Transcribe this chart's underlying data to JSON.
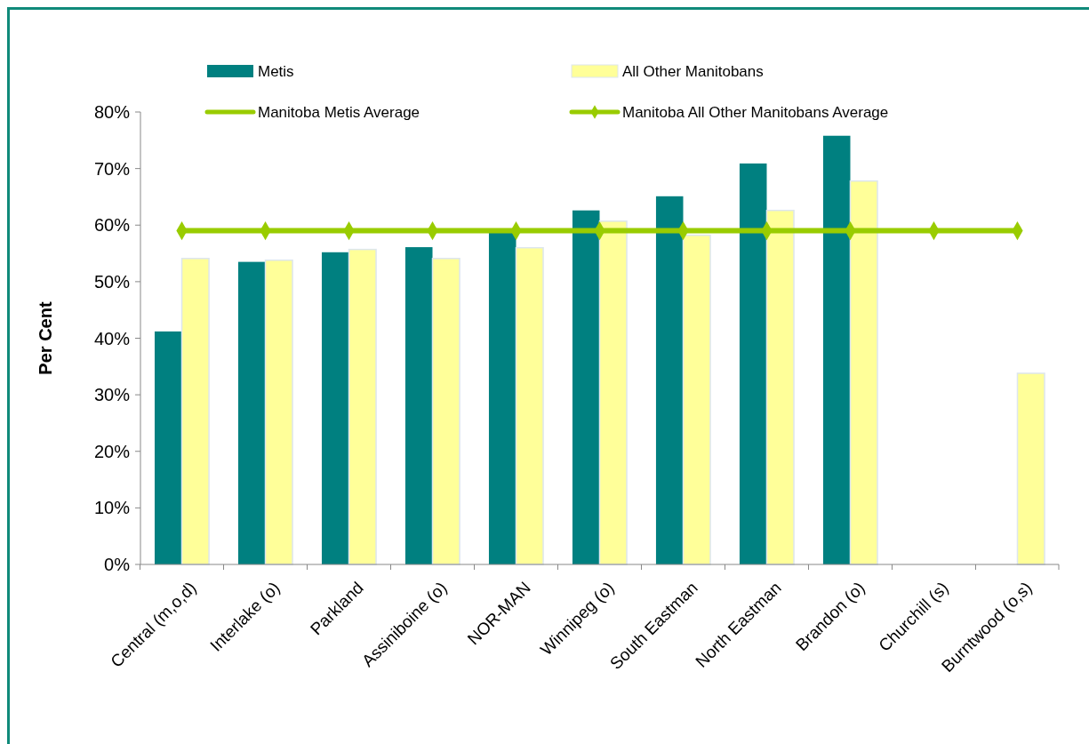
{
  "chart_data": {
    "type": "bar",
    "ylabel": "Per Cent",
    "categories": [
      "Central (m,o,d)",
      "Interlake (o)",
      "Parkland",
      "Assiniboine (o)",
      "NOR-MAN",
      "Winnipeg (o)",
      "South Eastman",
      "North Eastman",
      "Brandon (o)",
      "Churchill (s)",
      "Burntwood (o,s)"
    ],
    "series": [
      {
        "name": "Metis",
        "color": "#008080",
        "values": [
          41.2,
          53.5,
          55.2,
          56.1,
          58.8,
          62.6,
          65.1,
          70.9,
          75.8,
          null,
          null
        ]
      },
      {
        "name": "All Other Manitobans",
        "color": "#ffff99",
        "values": [
          54.1,
          53.8,
          55.7,
          54.1,
          56.0,
          60.7,
          58.2,
          62.6,
          67.8,
          null,
          33.8
        ]
      },
      {
        "name": "Manitoba Metis Average",
        "type": "line",
        "color": "#99cc00",
        "marker": "none",
        "values": [
          null,
          null,
          null,
          null,
          null,
          null,
          null,
          null,
          null,
          null,
          null
        ]
      },
      {
        "name": "Manitoba All Other Manitobans Average",
        "type": "line",
        "color": "#99cc00",
        "marker": "diamond",
        "values": [
          59,
          59,
          59,
          59,
          59,
          59,
          59,
          59,
          59,
          59,
          59
        ]
      }
    ],
    "ylim": [
      0,
      80
    ],
    "yticks": [
      {
        "value": 0,
        "label": "0%"
      },
      {
        "value": 10,
        "label": "10%"
      },
      {
        "value": 20,
        "label": "20%"
      },
      {
        "value": 30,
        "label": "30%"
      },
      {
        "value": 40,
        "label": "40%"
      },
      {
        "value": 50,
        "label": "50%"
      },
      {
        "value": 60,
        "label": "60%"
      },
      {
        "value": 70,
        "label": "70%"
      },
      {
        "value": 80,
        "label": "80%"
      }
    ],
    "grid": false,
    "legend": "top"
  }
}
